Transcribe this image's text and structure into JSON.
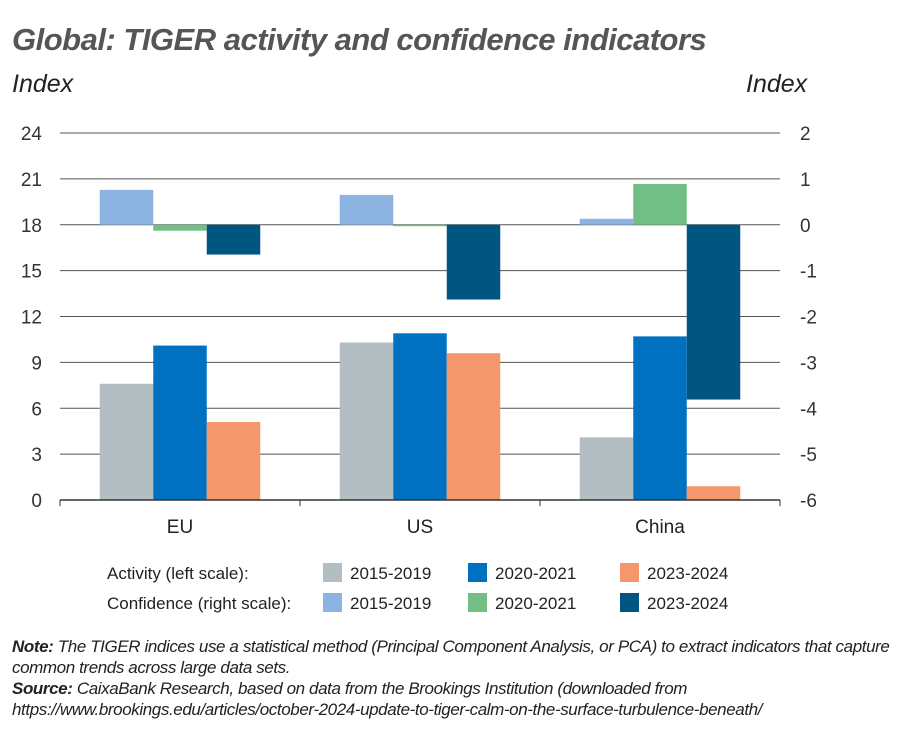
{
  "chart_data": {
    "type": "bar",
    "title": "Global: TIGER activity and confidence indicators",
    "ylabel_left": "Index",
    "ylabel_right": "Index",
    "categories": [
      "EU",
      "US",
      "China"
    ],
    "ylim_left": [
      0,
      24
    ],
    "yticks_left": [
      0,
      3,
      6,
      9,
      12,
      15,
      18,
      21,
      24
    ],
    "ylim_right": [
      -6,
      2
    ],
    "yticks_right": [
      -6,
      -5,
      -4,
      -3,
      -2,
      -1,
      0,
      1,
      2
    ],
    "grid": true,
    "legend_placement": "bottom",
    "legend_groups": [
      "Activity (left scale):",
      "Confidence (right scale):"
    ],
    "series": [
      {
        "name": "2015-2019",
        "group": "Activity (left scale):",
        "axis": "left",
        "color": "#b3bec3",
        "values": [
          7.6,
          10.3,
          4.1
        ]
      },
      {
        "name": "2020-2021",
        "group": "Activity (left scale):",
        "axis": "left",
        "color": "#0070c0",
        "values": [
          10.1,
          10.9,
          10.7
        ]
      },
      {
        "name": "2023-2024",
        "group": "Activity (left scale):",
        "axis": "left",
        "color": "#f4976c",
        "values": [
          5.1,
          9.6,
          0.9
        ]
      },
      {
        "name": "2015-2019",
        "group": "Confidence (right scale):",
        "axis": "right",
        "color": "#8db3e2",
        "values": [
          0.76,
          0.65,
          0.13
        ]
      },
      {
        "name": "2020-2021",
        "group": "Confidence (right scale):",
        "axis": "right",
        "color": "#72bf85",
        "values": [
          -0.13,
          -0.02,
          0.89
        ]
      },
      {
        "name": "2023-2024",
        "group": "Confidence (right scale):",
        "axis": "right",
        "color": "#005581",
        "values": [
          -0.65,
          -1.63,
          -3.81
        ]
      }
    ]
  },
  "notes": {
    "note_label": "Note:",
    "note_text": " The TIGER indices use a statistical method (Principal Component Analysis, or PCA) to extract indicators that capture common trends across large data sets.",
    "source_label": "Source:",
    "source_text": " CaixaBank Research, based on data from the Brookings Institution (downloaded from https://www.brookings.edu/articles/october-2024-update-to-tiger-calm-on-the-surface-turbulence-beneath/"
  }
}
